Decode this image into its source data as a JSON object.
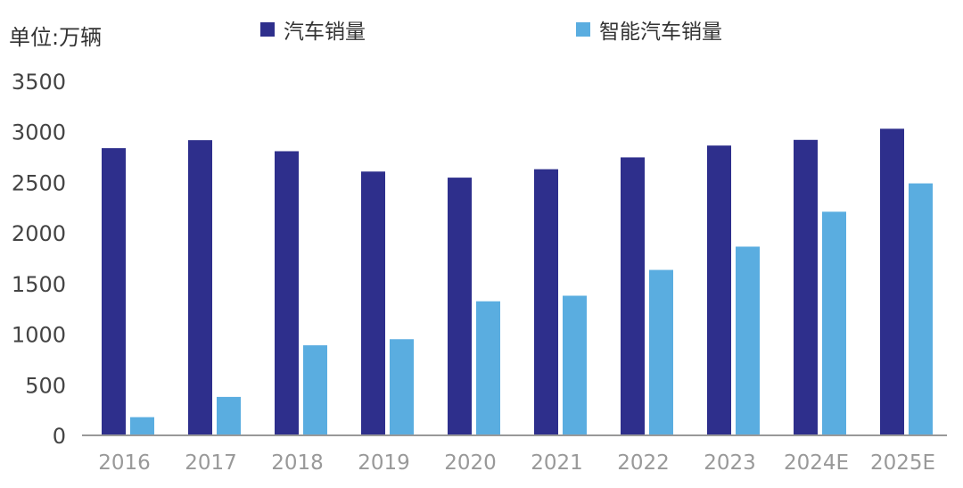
{
  "unit_label": "单位:万辆",
  "colors": {
    "series0": "#2e2f8c",
    "series1": "#5aade0",
    "axis": "#999999",
    "tick_text": "#444444"
  },
  "chart_data": {
    "type": "bar",
    "title": "",
    "xlabel": "",
    "ylabel": "",
    "ylim": [
      0,
      3500
    ],
    "yticks": [
      0,
      500,
      1000,
      1500,
      2000,
      2500,
      3000,
      3500
    ],
    "grid": false,
    "legend": "top",
    "categories": [
      "2016",
      "2017",
      "2018",
      "2019",
      "2020",
      "2021",
      "2022",
      "2023",
      "2024E",
      "2025E"
    ],
    "series": [
      {
        "name": "汽车销量",
        "values": [
          2838,
          2917,
          2808,
          2607,
          2547,
          2630,
          2747,
          2864,
          2920,
          3030
        ]
      },
      {
        "name": "智能汽车销量",
        "values": [
          180,
          380,
          890,
          950,
          1325,
          1380,
          1635,
          1865,
          2210,
          2490
        ]
      }
    ]
  }
}
